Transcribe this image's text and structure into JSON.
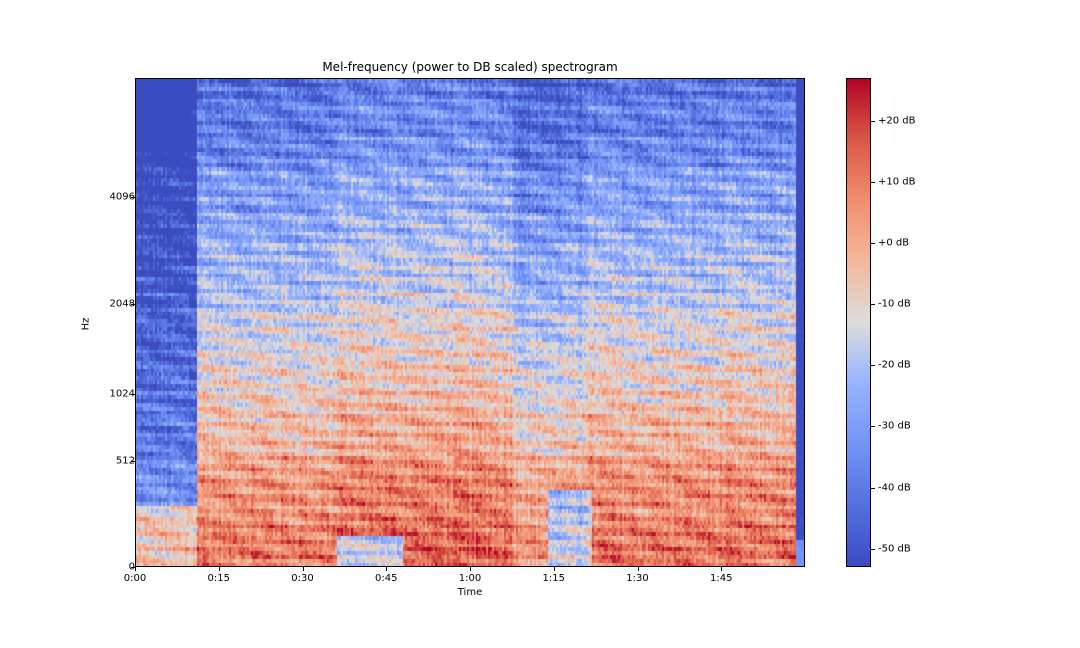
{
  "chart_data": {
    "type": "heatmap",
    "title": "Mel-frequency (power to DB scaled) spectrogram",
    "xlabel": "Time",
    "ylabel": "Hz",
    "x_ticks": [
      "0:00",
      "0:15",
      "0:30",
      "0:45",
      "1:00",
      "1:15",
      "1:30",
      "1:45"
    ],
    "x_tick_seconds": [
      0,
      15,
      30,
      45,
      60,
      75,
      90,
      105
    ],
    "xlim_seconds": [
      0,
      120
    ],
    "y_scale": "mel",
    "y_ticks": [
      "0",
      "512",
      "1024",
      "2048",
      "4096"
    ],
    "y_tick_hz": [
      0,
      512,
      1024,
      2048,
      4096
    ],
    "ylim_hz": [
      0,
      8192
    ],
    "colorbar": {
      "colormap": "coolwarm",
      "format": "%+2.0f dB",
      "tick_labels": [
        "+20 dB",
        "+10 dB",
        "+0 dB",
        "-10 dB",
        "-20 dB",
        "-30 dB",
        "-40 dB",
        "-50 dB"
      ],
      "tick_values": [
        20,
        10,
        0,
        -10,
        -20,
        -30,
        -40,
        -50
      ],
      "range_db": [
        -53,
        27
      ]
    },
    "colors": {
      "low": "#3b4cc0",
      "mid": "#dddddd",
      "high": "#b40426"
    },
    "description": "Energy concentrated below ~1024 Hz (red/orange) across most of the track; quiet intro until ~0:12 with low energy above 512 Hz; high frequencies mostly blue; silence (dark blue) after ~1:59."
  },
  "plot": {
    "title": "Mel-frequency (power to DB scaled) spectrogram",
    "xlabel": "Time",
    "ylabel": "Hz"
  }
}
